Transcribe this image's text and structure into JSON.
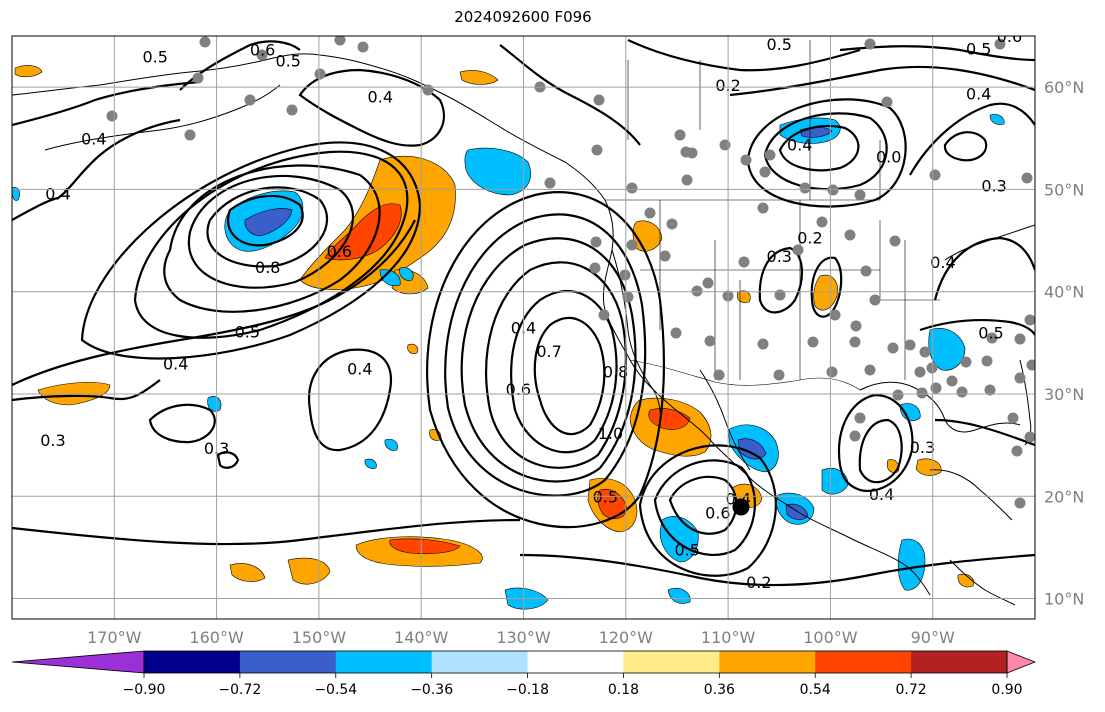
{
  "title": "2024092600 F096",
  "map": {
    "extent": {
      "lon_min": -180,
      "lon_max": -80,
      "lat_min": 8,
      "lat_max": 65
    },
    "lon_ticks": [
      {
        "value": -170,
        "label": "170°W"
      },
      {
        "value": -160,
        "label": "160°W"
      },
      {
        "value": -150,
        "label": "150°W"
      },
      {
        "value": -140,
        "label": "140°W"
      },
      {
        "value": -130,
        "label": "130°W"
      },
      {
        "value": -120,
        "label": "120°W"
      },
      {
        "value": -110,
        "label": "110°W"
      },
      {
        "value": -100,
        "label": "100°W"
      },
      {
        "value": -90,
        "label": "90°W"
      }
    ],
    "lat_ticks": [
      {
        "value": 60,
        "label": "60°N"
      },
      {
        "value": 50,
        "label": "50°N"
      },
      {
        "value": 40,
        "label": "40°N"
      },
      {
        "value": 30,
        "label": "30°N"
      },
      {
        "value": 20,
        "label": "20°N"
      },
      {
        "value": 10,
        "label": "10°N"
      }
    ],
    "grid": true,
    "contour_labels": [
      {
        "text": "0.5",
        "lon": -166,
        "lat": 63
      },
      {
        "text": "0.6",
        "lon": -155.5,
        "lat": 63.7
      },
      {
        "text": "0.5",
        "lon": -153,
        "lat": 62.6
      },
      {
        "text": "0.4",
        "lon": -144,
        "lat": 59.1
      },
      {
        "text": "0.4",
        "lon": -172,
        "lat": 55
      },
      {
        "text": "0.4",
        "lon": -175.5,
        "lat": 49.6
      },
      {
        "text": "0.8",
        "lon": -155,
        "lat": 42.4
      },
      {
        "text": "0.6",
        "lon": -148,
        "lat": 44
      },
      {
        "text": "0.5",
        "lon": -157,
        "lat": 36.1
      },
      {
        "text": "0.4",
        "lon": -164,
        "lat": 33
      },
      {
        "text": "0.4",
        "lon": -146,
        "lat": 32.5
      },
      {
        "text": "0.3",
        "lon": -176,
        "lat": 25.5
      },
      {
        "text": "0.3",
        "lon": -160,
        "lat": 24.7
      },
      {
        "text": "0.4",
        "lon": -130,
        "lat": 36.5
      },
      {
        "text": "0.7",
        "lon": -127.5,
        "lat": 34.2
      },
      {
        "text": "0.6",
        "lon": -130.5,
        "lat": 30.5
      },
      {
        "text": "0.8",
        "lon": -121,
        "lat": 32.2
      },
      {
        "text": "1.0",
        "lon": -121.5,
        "lat": 26.2
      },
      {
        "text": "0.5",
        "lon": -122,
        "lat": 20
      },
      {
        "text": "0.5",
        "lon": -114,
        "lat": 14.8
      },
      {
        "text": "0.6",
        "lon": -111,
        "lat": 18.4
      },
      {
        "text": "0.4",
        "lon": -109,
        "lat": 19.8
      },
      {
        "text": "0.2",
        "lon": -107,
        "lat": 11.6
      },
      {
        "text": "0.5",
        "lon": -105,
        "lat": 64.2
      },
      {
        "text": "0.2",
        "lon": -110,
        "lat": 60.2
      },
      {
        "text": "0.4",
        "lon": -103,
        "lat": 54.4
      },
      {
        "text": "0.0",
        "lon": -94.3,
        "lat": 53.2
      },
      {
        "text": "0.5",
        "lon": -85.5,
        "lat": 63.8
      },
      {
        "text": "0.4",
        "lon": -85.5,
        "lat": 59.4
      },
      {
        "text": "0.6",
        "lon": -82.5,
        "lat": 65
      },
      {
        "text": "0.3",
        "lon": -105,
        "lat": 43.5
      },
      {
        "text": "0.2",
        "lon": -102,
        "lat": 45.3
      },
      {
        "text": "0.3",
        "lon": -84,
        "lat": 50.4
      },
      {
        "text": "0.4",
        "lon": -89,
        "lat": 42.9
      },
      {
        "text": "0.5",
        "lon": -84.3,
        "lat": 36
      },
      {
        "text": "0.3",
        "lon": -91,
        "lat": 24.8
      },
      {
        "text": "0.4",
        "lon": -95,
        "lat": 20.2
      }
    ],
    "marker_color": "#808080",
    "storm_marker_color": "#000000"
  },
  "colorbar": {
    "colors": [
      "#9b30d9",
      "#00008b",
      "#3a5fcd",
      "#00bfff",
      "#b0e2ff",
      "#ffffff",
      "#ffec8b",
      "#ffa500",
      "#ff4500",
      "#b22222",
      "#ff88aa"
    ],
    "tick_labels": [
      "−0.90",
      "−0.72",
      "−0.54",
      "−0.36",
      "−0.18",
      "0.18",
      "0.36",
      "0.54",
      "0.72",
      "0.90"
    ]
  }
}
